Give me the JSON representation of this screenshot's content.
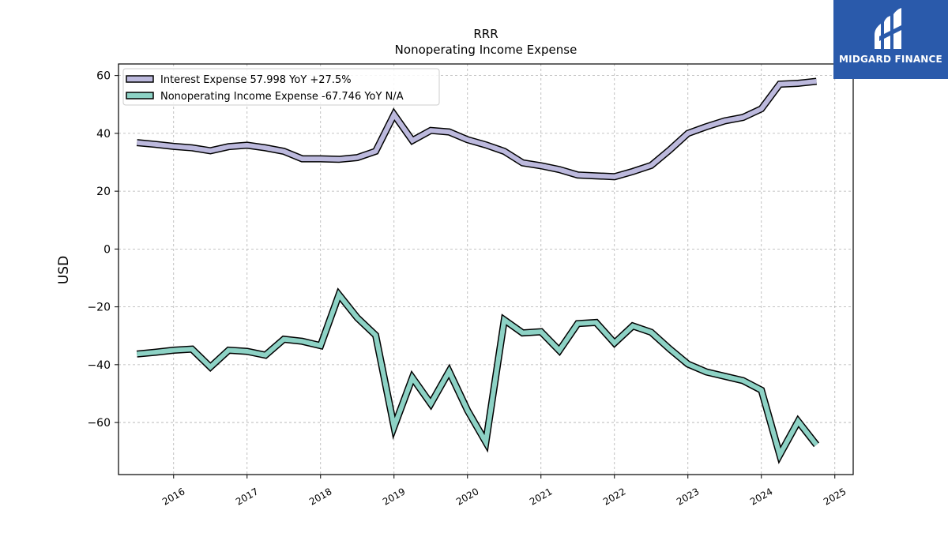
{
  "brand": {
    "name": "MIDGARD FINANCE",
    "color": "#2a5aab"
  },
  "chart_data": {
    "type": "line",
    "title": "RRR",
    "subtitle": "Nonoperating Income Expense",
    "ylabel": "USD",
    "xlabel": "",
    "xlim": [
      2015.25,
      2025.25
    ],
    "ylim": [
      -78,
      64
    ],
    "yticks": [
      60,
      40,
      20,
      0,
      -20,
      -40,
      -60
    ],
    "ytick_labels": [
      "60",
      "40",
      "20",
      "0",
      "−20",
      "−40",
      "−60"
    ],
    "xticks": [
      2016,
      2017,
      2018,
      2019,
      2020,
      2021,
      2022,
      2023,
      2024,
      2025
    ],
    "xtick_labels": [
      "2016",
      "2017",
      "2018",
      "2019",
      "2020",
      "2021",
      "2022",
      "2023",
      "2024",
      "2025"
    ],
    "grid": true,
    "legend_position": "top-left",
    "x": [
      2015.5,
      2015.75,
      2016.0,
      2016.25,
      2016.5,
      2016.75,
      2017.0,
      2017.25,
      2017.5,
      2017.75,
      2018.0,
      2018.25,
      2018.5,
      2018.75,
      2019.0,
      2019.25,
      2019.5,
      2019.75,
      2020.0,
      2020.25,
      2020.5,
      2020.75,
      2021.0,
      2021.25,
      2021.5,
      2021.75,
      2022.0,
      2022.25,
      2022.5,
      2022.75,
      2023.0,
      2023.25,
      2023.5,
      2023.75,
      2024.0,
      2024.25,
      2024.5,
      2024.75
    ],
    "series": [
      {
        "name": "Interest Expense",
        "legend_label": "Interest Expense  57.998 YoY +27.5%",
        "color": "#bcb9dd",
        "values": [
          36.8,
          36.2,
          35.5,
          35.0,
          34.0,
          35.4,
          35.9,
          35.0,
          33.8,
          31.2,
          31.2,
          31.0,
          31.6,
          33.8,
          46.5,
          37.5,
          41.0,
          40.5,
          37.8,
          36.0,
          33.8,
          29.8,
          28.8,
          27.5,
          25.6,
          25.3,
          25.0,
          26.8,
          28.9,
          34.2,
          40.0,
          42.3,
          44.3,
          45.5,
          48.5,
          57.0,
          57.3,
          58.0
        ]
      },
      {
        "name": "Nonoperating Income Expense",
        "legend_label": "Nonoperating Income Expense  -67.746 YoY N/A",
        "color": "#8dd2c5",
        "values": [
          -36.3,
          -35.7,
          -35.0,
          -34.6,
          -40.8,
          -35.0,
          -35.4,
          -36.7,
          -31.2,
          -31.9,
          -33.4,
          -15.8,
          -23.8,
          -29.8,
          -61.5,
          -44.5,
          -53.5,
          -42.3,
          -55.8,
          -66.8,
          -24.5,
          -29.0,
          -28.6,
          -35.1,
          -25.8,
          -25.4,
          -32.5,
          -26.6,
          -28.8,
          -34.5,
          -39.8,
          -42.5,
          -44.0,
          -45.5,
          -48.8,
          -71.2,
          -59.6,
          -67.7
        ]
      }
    ]
  }
}
